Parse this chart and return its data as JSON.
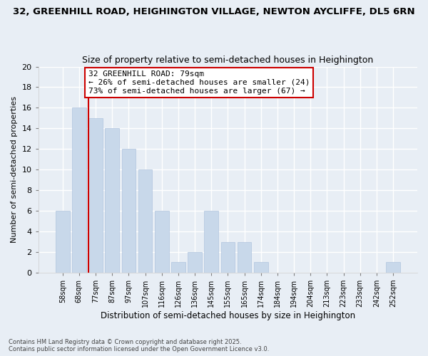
{
  "title_line1": "32, GREENHILL ROAD, HEIGHINGTON VILLAGE, NEWTON AYCLIFFE, DL5 6RN",
  "title_line2": "Size of property relative to semi-detached houses in Heighington",
  "xlabel": "Distribution of semi-detached houses by size in Heighington",
  "ylabel": "Number of semi-detached properties",
  "categories": [
    "58sqm",
    "68sqm",
    "77sqm",
    "87sqm",
    "97sqm",
    "107sqm",
    "116sqm",
    "126sqm",
    "136sqm",
    "145sqm",
    "155sqm",
    "165sqm",
    "174sqm",
    "184sqm",
    "194sqm",
    "204sqm",
    "213sqm",
    "223sqm",
    "233sqm",
    "242sqm",
    "252sqm"
  ],
  "values": [
    6,
    16,
    15,
    14,
    12,
    10,
    6,
    1,
    2,
    6,
    3,
    3,
    1,
    0,
    0,
    0,
    0,
    0,
    0,
    0,
    1
  ],
  "bar_color": "#c8d8ea",
  "red_line_color": "#cc0000",
  "red_line_bar_index": 2,
  "ylim": [
    0,
    20
  ],
  "yticks": [
    0,
    2,
    4,
    6,
    8,
    10,
    12,
    14,
    16,
    18,
    20
  ],
  "annotation_text": "32 GREENHILL ROAD: 79sqm\n← 26% of semi-detached houses are smaller (24)\n73% of semi-detached houses are larger (67) →",
  "annotation_box_color": "#ffffff",
  "annotation_box_edge": "#cc0000",
  "footer_line1": "Contains HM Land Registry data © Crown copyright and database right 2025.",
  "footer_line2": "Contains public sector information licensed under the Open Government Licence v3.0.",
  "bg_color": "#e8eef5",
  "plot_bg_color": "#e8eef5",
  "title_fontsize": 9.5,
  "subtitle_fontsize": 9,
  "annotation_fontsize": 8
}
